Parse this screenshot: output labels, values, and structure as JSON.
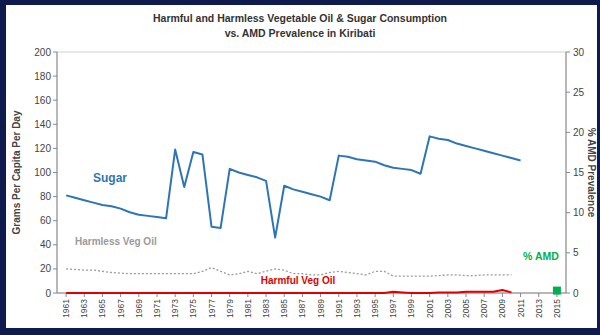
{
  "chart_data": {
    "type": "line",
    "title": "Harmful and Harmless  Vegetable Oil & Sugar Consumption",
    "subtitle": "vs. AMD Prevalence in Kiribati",
    "y_label": "Grams Per Capita Per Day",
    "y2_label": "% AMD Prevalence",
    "x": [
      1961,
      1962,
      1963,
      1964,
      1965,
      1966,
      1967,
      1968,
      1969,
      1970,
      1971,
      1972,
      1973,
      1974,
      1975,
      1976,
      1977,
      1978,
      1979,
      1980,
      1981,
      1982,
      1983,
      1984,
      1985,
      1986,
      1987,
      1988,
      1989,
      1990,
      1991,
      1992,
      1993,
      1994,
      1995,
      1996,
      1997,
      1998,
      1999,
      2000,
      2001,
      2002,
      2003,
      2004,
      2005,
      2006,
      2007,
      2008,
      2009,
      2010,
      2011,
      2012,
      2013,
      2014,
      2015
    ],
    "series": [
      {
        "name": "Sugar",
        "color": "#2e75b6",
        "line_style": "solid",
        "values": [
          81,
          79,
          77,
          75,
          73,
          72,
          70,
          67,
          65,
          64,
          63,
          62,
          119,
          88,
          117,
          115,
          55,
          54,
          103,
          100,
          98,
          96,
          93,
          46,
          89,
          86,
          84,
          82,
          80,
          77,
          114,
          113,
          111,
          110,
          109,
          106,
          104,
          103,
          102,
          99,
          130,
          128,
          127,
          124,
          122,
          120,
          118,
          116,
          114,
          112,
          110,
          null,
          null,
          null,
          null
        ]
      },
      {
        "name": "Harmless Veg Oil",
        "color": "#9a9a9a",
        "line_style": "dotted",
        "values": [
          20,
          19.5,
          19,
          19,
          18,
          17,
          16.5,
          16,
          16,
          16,
          16,
          16,
          16,
          16,
          16,
          18,
          21,
          18,
          15,
          16,
          18,
          16,
          18,
          20,
          19,
          16,
          16,
          15,
          15,
          17,
          18,
          17,
          16,
          15,
          18,
          18,
          14,
          14,
          14,
          14,
          14,
          14.5,
          15,
          15,
          14.5,
          14.5,
          15,
          15,
          15,
          15,
          null,
          null,
          null,
          null,
          null
        ]
      },
      {
        "name": "Harmful Veg Oil",
        "color": "#e00000",
        "line_style": "solid",
        "values": [
          0,
          0,
          0,
          0,
          0,
          0,
          0,
          0,
          0,
          0,
          0,
          0,
          0,
          0,
          0,
          0,
          0,
          0,
          0,
          0,
          0,
          0,
          0,
          0,
          0,
          0,
          0,
          0,
          0,
          0,
          0,
          0,
          0,
          0,
          0,
          0,
          1,
          0.5,
          0,
          0,
          0,
          0.5,
          0.5,
          0.5,
          1,
          1,
          1,
          1,
          2.5,
          0.5,
          null,
          null,
          null,
          null,
          null
        ]
      },
      {
        "name": "% AMD",
        "color": "#00b050",
        "type": "scatter",
        "marker": "square",
        "axis": "y2",
        "values": [
          null,
          null,
          null,
          null,
          null,
          null,
          null,
          null,
          null,
          null,
          null,
          null,
          null,
          null,
          null,
          null,
          null,
          null,
          null,
          null,
          null,
          null,
          null,
          null,
          null,
          null,
          null,
          null,
          null,
          null,
          null,
          null,
          null,
          null,
          null,
          null,
          null,
          null,
          null,
          null,
          null,
          null,
          null,
          null,
          null,
          null,
          null,
          null,
          null,
          null,
          null,
          null,
          null,
          null,
          0.3
        ]
      }
    ],
    "xlim": [
      1960,
      2016
    ],
    "xticks": [
      1961,
      1963,
      1965,
      1967,
      1969,
      1971,
      1973,
      1975,
      1977,
      1979,
      1981,
      1983,
      1985,
      1987,
      1989,
      1991,
      1993,
      1995,
      1997,
      1999,
      2001,
      2003,
      2005,
      2007,
      2009,
      2011,
      2013,
      2015
    ],
    "ylim": [
      0,
      200
    ],
    "yticks": [
      0,
      20,
      40,
      60,
      80,
      100,
      120,
      140,
      160,
      180,
      200
    ],
    "y2lim": [
      0,
      30
    ],
    "y2ticks": [
      0,
      5,
      10,
      15,
      20,
      25,
      30
    ],
    "grid": false
  }
}
